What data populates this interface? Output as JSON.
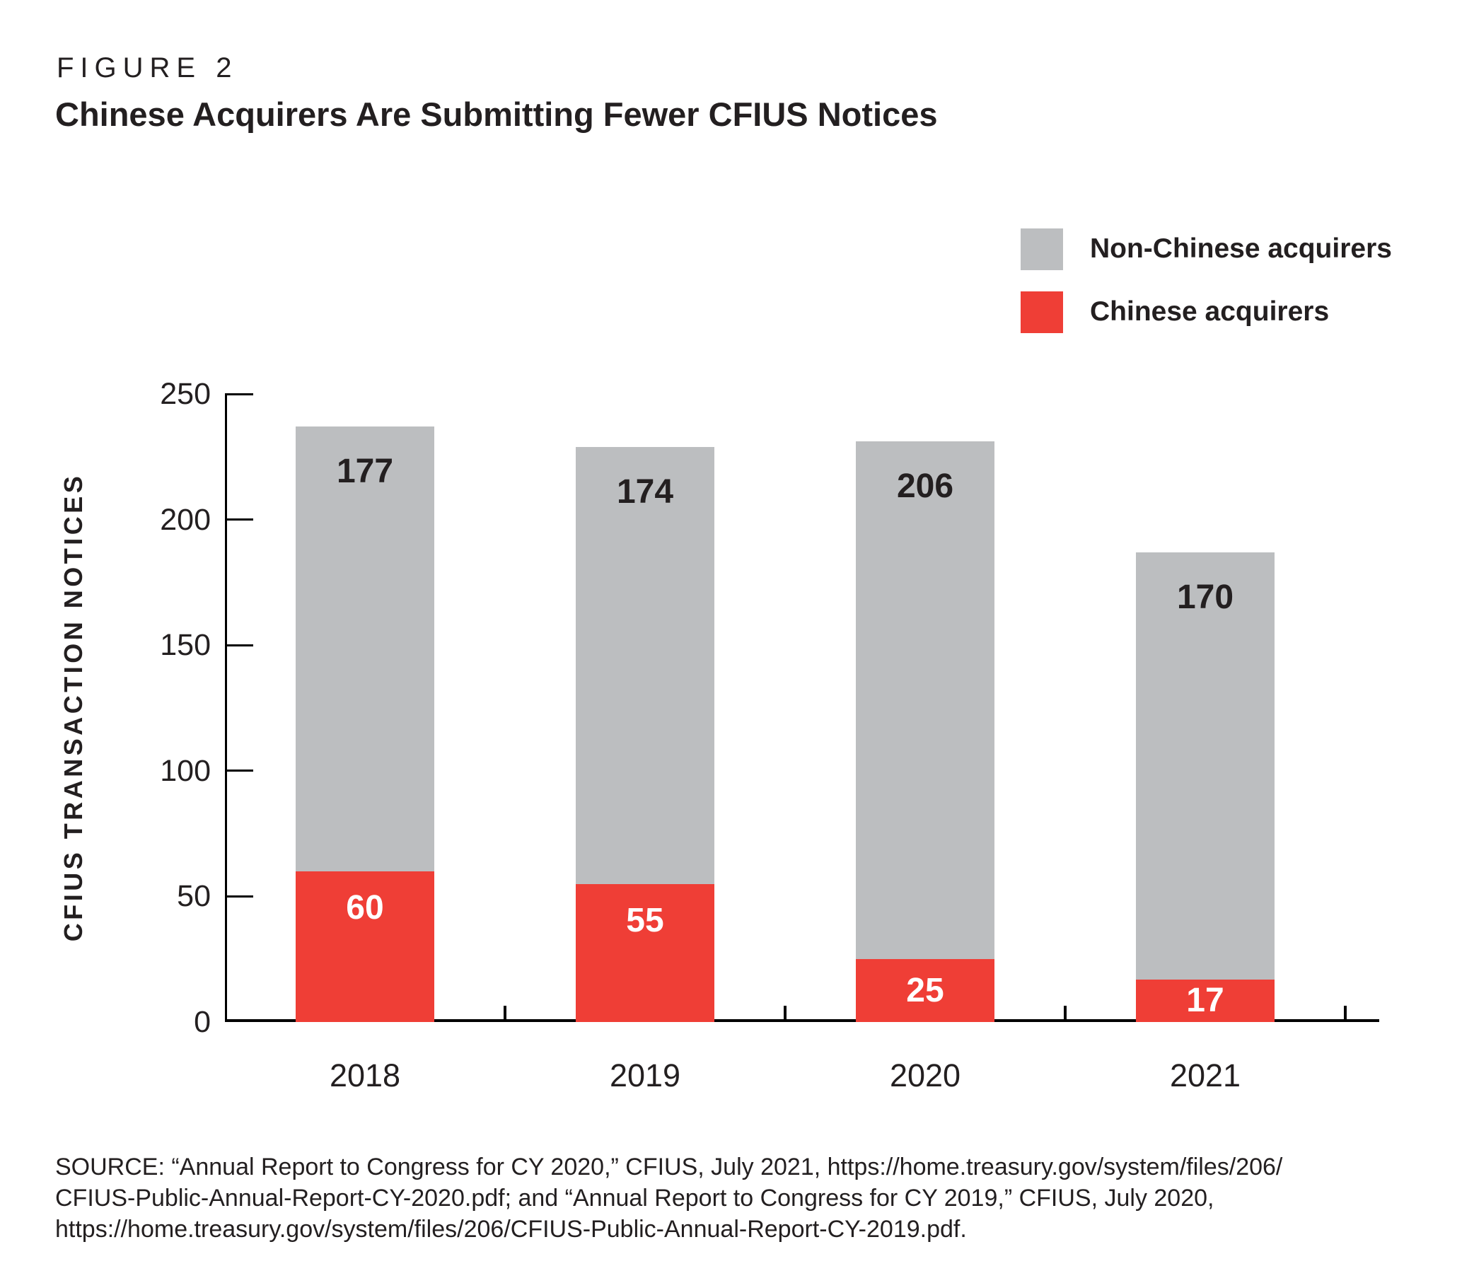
{
  "figure": {
    "label": "FIGURE 2",
    "title": "Chinese Acquirers Are Submitting Fewer CFIUS Notices"
  },
  "legend": [
    {
      "label": "Non-Chinese acquirers",
      "color": "#bcbec0"
    },
    {
      "label": "Chinese acquirers",
      "color": "#ef3e36"
    }
  ],
  "chart_data": {
    "type": "bar",
    "stacked": true,
    "title": "Chinese Acquirers Are Submitting Fewer CFIUS Notices",
    "categories": [
      "2018",
      "2019",
      "2020",
      "2021"
    ],
    "series": [
      {
        "name": "Chinese acquirers",
        "color": "#ef3e36",
        "label_color": "#ffffff",
        "values": [
          60,
          55,
          25,
          17
        ]
      },
      {
        "name": "Non-Chinese acquirers",
        "color": "#bcbec0",
        "label_color": "#231f20",
        "values": [
          177,
          174,
          206,
          170
        ]
      }
    ],
    "totals": [
      237,
      229,
      231,
      187
    ],
    "xlabel": "",
    "ylabel": "CFIUS TRANSACTION NOTICES",
    "ylim": [
      0,
      250
    ],
    "yticks": [
      0,
      50,
      100,
      150,
      200,
      250
    ],
    "grid": false,
    "legend_position": "top-right"
  },
  "source": {
    "lines": [
      "SOURCE: “Annual Report to Congress for CY 2020,” CFIUS, July 2021, https://home.treasury.gov/system/files/206/",
      "CFIUS-Public-Annual-Report-CY-2020.pdf; and “Annual Report to Congress for CY 2019,” CFIUS, July 2020,",
      "https://home.treasury.gov/system/files/206/CFIUS-Public-Annual-Report-CY-2019.pdf."
    ]
  }
}
